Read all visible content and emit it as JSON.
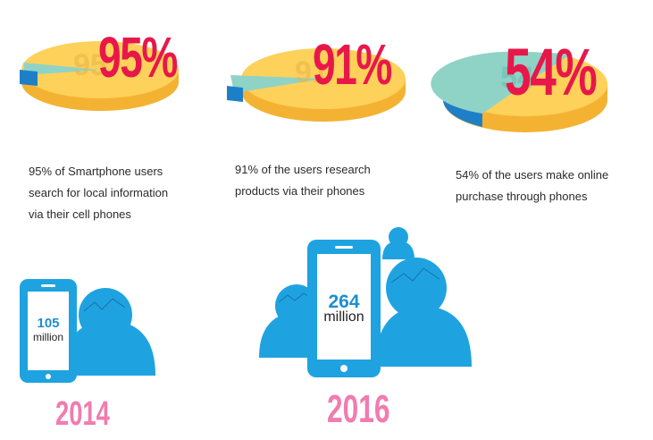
{
  "stats": [
    {
      "percent_label": "95%",
      "percent_value": 95,
      "caption_lines": [
        "95% of Smartphone users",
        "search for local information",
        "via their cell phones"
      ]
    },
    {
      "percent_label": "91%",
      "percent_value": 91,
      "caption_lines": [
        "91% of the users research",
        "products via their phones"
      ]
    },
    {
      "percent_label": "54%",
      "percent_value": 54,
      "caption_lines": [
        "54% of the users make online",
        "purchase through phones"
      ]
    }
  ],
  "users_2014": {
    "number": "105",
    "unit": "million",
    "year": "2014"
  },
  "users_2016": {
    "number": "264",
    "unit": "million",
    "year": "2016"
  },
  "colors": {
    "pie_main_top": "#fdd15a",
    "pie_main_side": "#f4b233",
    "pie_minor_top": "#8fd3c7",
    "pie_minor_side": "#1e7fc9",
    "percent_text": "#e8174a",
    "year_text": "#f07cb0",
    "icon_blue": "#1fa3e0",
    "icon_dark": "#1a6fae"
  },
  "icons": [
    "smartphone-icon",
    "user-silhouette-icon"
  ]
}
